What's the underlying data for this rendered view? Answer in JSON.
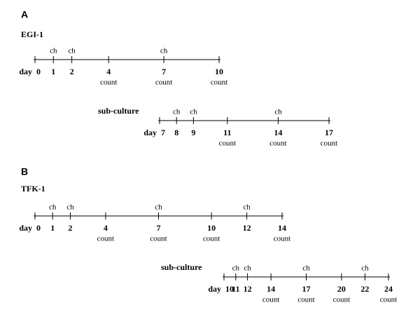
{
  "panels": [
    {
      "label": "A",
      "title": "EGI-1",
      "timelines": [
        {
          "heading": null,
          "prefix": "day",
          "ticks": [
            {
              "day": 0
            },
            {
              "day": 1,
              "above": "ch"
            },
            {
              "day": 2,
              "above": "ch"
            },
            {
              "day": 4,
              "below": "count"
            },
            {
              "day": 7,
              "above": "ch",
              "below": "count"
            },
            {
              "day": 10,
              "below": "count"
            }
          ]
        },
        {
          "heading": "sub-culture",
          "prefix": "day",
          "ticks": [
            {
              "day": 7
            },
            {
              "day": 8,
              "above": "ch"
            },
            {
              "day": 9,
              "above": "ch"
            },
            {
              "day": 11,
              "below": "count"
            },
            {
              "day": 14,
              "above": "ch",
              "below": "count"
            },
            {
              "day": 17,
              "below": "count"
            }
          ]
        }
      ]
    },
    {
      "label": "B",
      "title": "TFK-1",
      "timelines": [
        {
          "heading": null,
          "prefix": "day",
          "ticks": [
            {
              "day": 0
            },
            {
              "day": 1,
              "above": "ch"
            },
            {
              "day": 2,
              "above": "ch"
            },
            {
              "day": 4,
              "below": "count"
            },
            {
              "day": 7,
              "above": "ch",
              "below": "count"
            },
            {
              "day": 10,
              "below": "count"
            },
            {
              "day": 12,
              "above": "ch"
            },
            {
              "day": 14,
              "below": "count"
            }
          ]
        },
        {
          "heading": "sub-culture",
          "prefix": "day",
          "ticks": [
            {
              "day": 10
            },
            {
              "day": 11,
              "above": "ch"
            },
            {
              "day": 12,
              "above": "ch"
            },
            {
              "day": 14,
              "below": "count"
            },
            {
              "day": 17,
              "above": "ch",
              "below": "count"
            },
            {
              "day": 20,
              "below": "count"
            },
            {
              "day": 22,
              "above": "ch"
            },
            {
              "day": 24,
              "below": "count"
            }
          ]
        }
      ]
    }
  ]
}
